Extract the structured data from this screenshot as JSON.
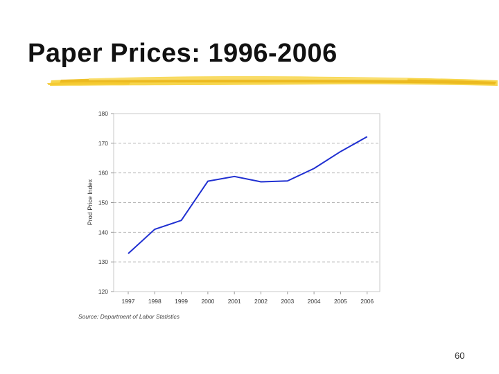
{
  "slide": {
    "title": "Paper Prices: 1996-2006",
    "page_number": "60",
    "source": "Source: Department of Labor Statistics",
    "accent_color": "#f2c21a"
  },
  "chart_data": {
    "type": "line",
    "title": "",
    "xlabel": "",
    "ylabel": "Prod Price Index",
    "categories": [
      "1997",
      "1998",
      "1999",
      "2000",
      "2001",
      "2002",
      "2003",
      "2004",
      "2005",
      "2006"
    ],
    "series": [
      {
        "values": [
          132.8,
          141.0,
          144.0,
          157.2,
          158.8,
          157.0,
          157.3,
          161.5,
          167.2,
          172.2
        ],
        "color": "#1f2fd1"
      }
    ],
    "ylim": [
      120,
      180
    ],
    "yticks": [
      120,
      130,
      140,
      150,
      160,
      170,
      180
    ],
    "grid": true,
    "legend": "none"
  }
}
